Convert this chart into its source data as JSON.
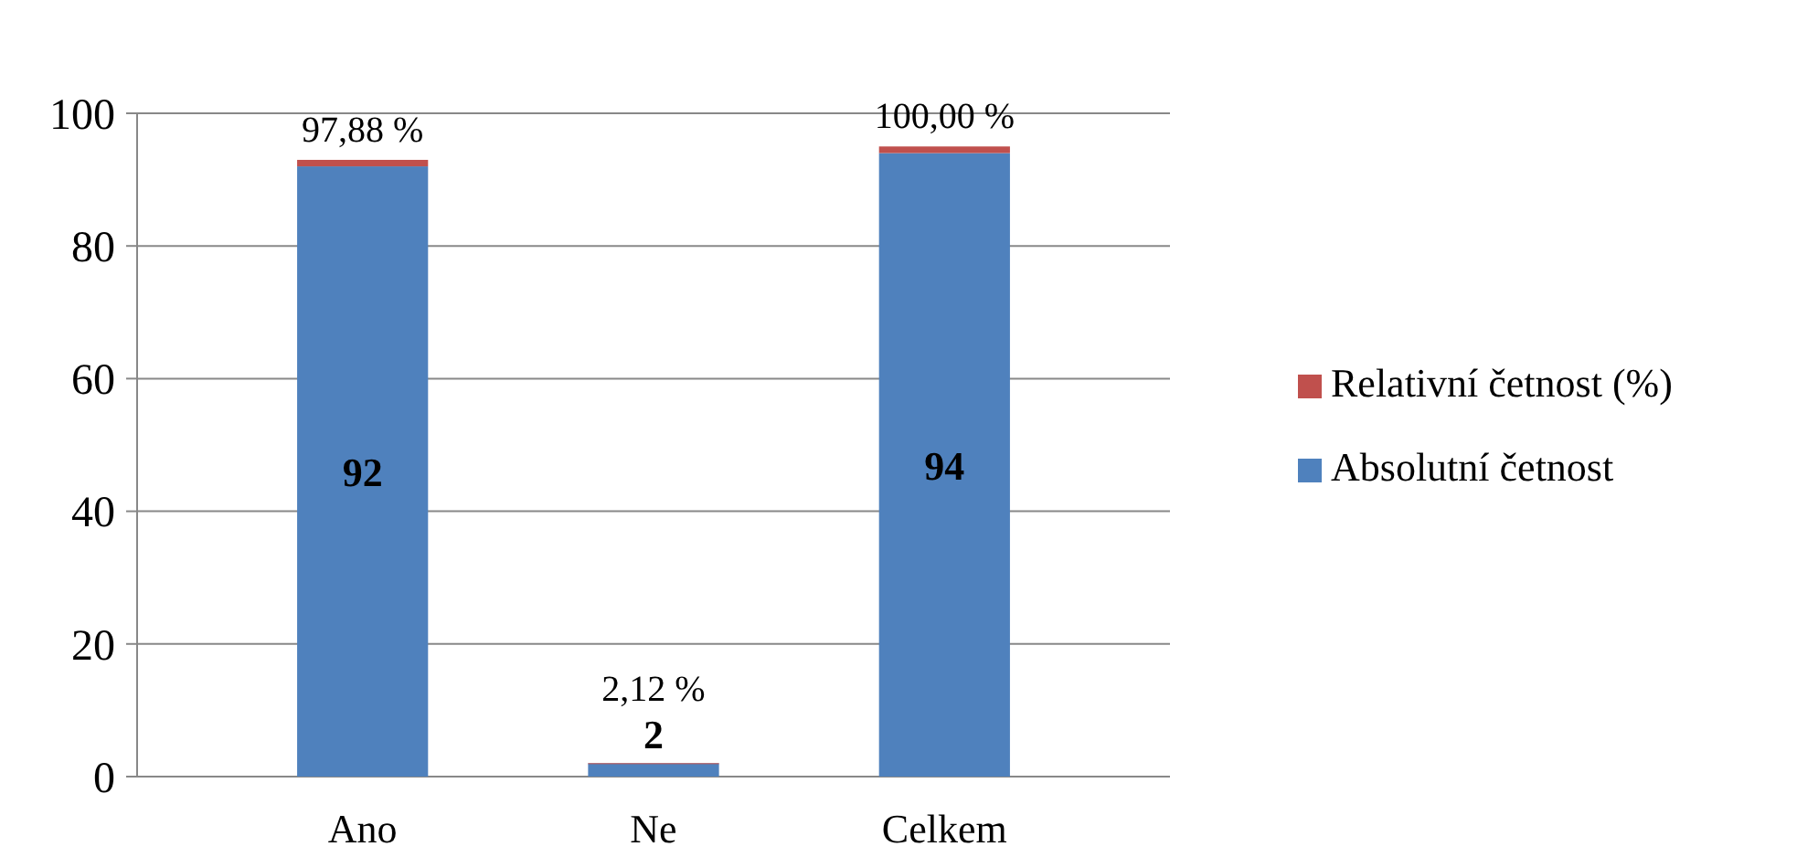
{
  "chart_data": {
    "type": "bar",
    "stacked": true,
    "categories": [
      "Ano",
      "Ne",
      "Celkem"
    ],
    "series": [
      {
        "name": "Absolutní četnost",
        "color": "#4f81bd",
        "values": [
          92,
          2,
          94
        ],
        "value_labels": [
          "92",
          "2",
          "94"
        ]
      },
      {
        "name": "Relativní četnost (%)",
        "color": "#c0504d",
        "values": [
          0.9788,
          0.0212,
          1
        ],
        "value_labels": [
          "97,88 %",
          "2,12 %",
          "100,00 %"
        ]
      }
    ],
    "ylim": [
      0,
      100
    ],
    "yticks": [
      0,
      20,
      40,
      60,
      80,
      100
    ],
    "grid": "y",
    "legend": "right"
  }
}
